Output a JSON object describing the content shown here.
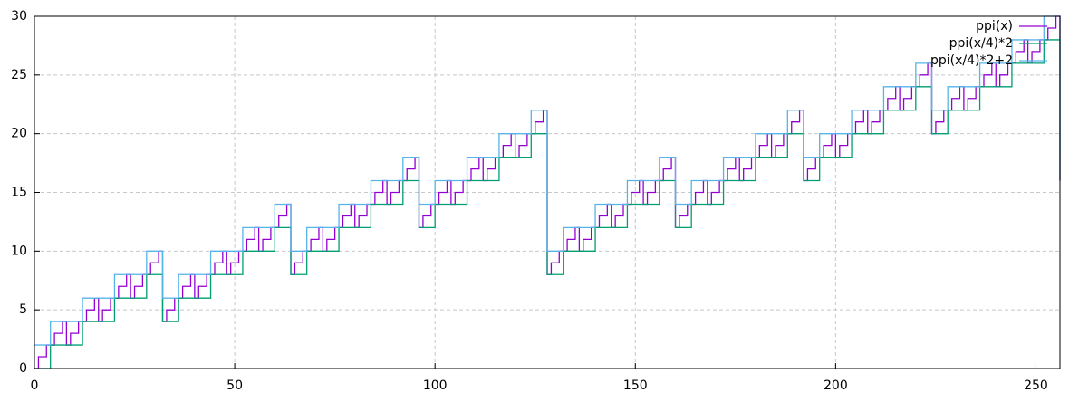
{
  "chart_data": {
    "type": "step",
    "xlim": [
      0,
      256
    ],
    "ylim": [
      0,
      30
    ],
    "xticks": [
      0,
      50,
      100,
      150,
      200,
      250
    ],
    "yticks": [
      0,
      5,
      10,
      15,
      20,
      25,
      30
    ],
    "grid": true,
    "legend": "top-right",
    "series": [
      {
        "name": "ppi(x)",
        "color": "#9400d3",
        "x": [
          0,
          1,
          2,
          3,
          4,
          5,
          6,
          7,
          8,
          9,
          10,
          11,
          12,
          13,
          14,
          15,
          16,
          17,
          18,
          19,
          20,
          21,
          22,
          23,
          24,
          25,
          26,
          27,
          28,
          29,
          30,
          31,
          32,
          33,
          34,
          35,
          36,
          37,
          38,
          39,
          40,
          41,
          42,
          43,
          44,
          45,
          46,
          47,
          48,
          49,
          50,
          51,
          52,
          53,
          54,
          55,
          56,
          57,
          58,
          59,
          60,
          61,
          62,
          63,
          64,
          65,
          66,
          67,
          68,
          69,
          70,
          71,
          72,
          73,
          74,
          75,
          76,
          77,
          78,
          79,
          80,
          81,
          82,
          83,
          84,
          85,
          86,
          87,
          88,
          89,
          90,
          91,
          92,
          93,
          94,
          95,
          96,
          97,
          98,
          99,
          100,
          101,
          102,
          103,
          104,
          105,
          106,
          107,
          108,
          109,
          110,
          111,
          112,
          113,
          114,
          115,
          116,
          117,
          118,
          119,
          120,
          121,
          122,
          123,
          124,
          125,
          126,
          127,
          128,
          129,
          130,
          131,
          132,
          133,
          134,
          135,
          136,
          137,
          138,
          139,
          140,
          141,
          142,
          143,
          144,
          145,
          146,
          147,
          148,
          149,
          150,
          151,
          152,
          153,
          154,
          155,
          156,
          157,
          158,
          159,
          160,
          161,
          162,
          163,
          164,
          165,
          166,
          167,
          168,
          169,
          170,
          171,
          172,
          173,
          174,
          175,
          176,
          177,
          178,
          179,
          180,
          181,
          182,
          183,
          184,
          185,
          186,
          187,
          188,
          189,
          190,
          191,
          192,
          193,
          194,
          195,
          196,
          197,
          198,
          199,
          200,
          201,
          202,
          203,
          204,
          205,
          206,
          207,
          208,
          209,
          210,
          211,
          212,
          213,
          214,
          215,
          216,
          217,
          218,
          219,
          220,
          221,
          222,
          223,
          224,
          225,
          226,
          227,
          228,
          229,
          230,
          231,
          232,
          233,
          234,
          235,
          236,
          237,
          238,
          239,
          240,
          241,
          242,
          243,
          244,
          245,
          246,
          247,
          248,
          249,
          250,
          251,
          252,
          253,
          254,
          255,
          256
        ],
        "values": [
          0,
          1,
          1,
          2,
          2,
          3,
          3,
          4,
          2,
          3,
          3,
          4,
          4,
          5,
          5,
          6,
          4,
          5,
          5,
          6,
          6,
          7,
          7,
          8,
          6,
          7,
          7,
          8,
          8,
          9,
          9,
          10,
          4,
          5,
          5,
          6,
          6,
          7,
          7,
          8,
          6,
          7,
          7,
          8,
          8,
          9,
          9,
          10,
          8,
          9,
          9,
          10,
          10,
          11,
          11,
          12,
          10,
          11,
          11,
          12,
          12,
          13,
          13,
          14,
          8,
          9,
          9,
          10,
          10,
          11,
          11,
          12,
          10,
          11,
          11,
          12,
          12,
          13,
          13,
          14,
          12,
          13,
          13,
          14,
          14,
          15,
          15,
          16,
          14,
          15,
          15,
          16,
          16,
          17,
          17,
          18,
          12,
          13,
          13,
          14,
          14,
          15,
          15,
          16,
          14,
          15,
          15,
          16,
          16,
          17,
          17,
          18,
          16,
          17,
          17,
          18,
          18,
          19,
          19,
          20,
          18,
          19,
          19,
          20,
          20,
          21,
          21,
          22,
          8,
          9,
          9,
          10,
          10,
          11,
          11,
          12,
          10,
          11,
          11,
          12,
          12,
          13,
          13,
          14,
          12,
          13,
          13,
          14,
          14,
          15,
          15,
          16,
          14,
          15,
          15,
          16,
          16,
          17,
          17,
          18,
          12,
          13,
          13,
          14,
          14,
          15,
          15,
          16,
          14,
          15,
          15,
          16,
          16,
          17,
          17,
          18,
          16,
          17,
          17,
          18,
          18,
          19,
          19,
          20,
          18,
          19,
          19,
          20,
          20,
          21,
          21,
          22,
          16,
          17,
          17,
          18,
          18,
          19,
          19,
          20,
          18,
          19,
          19,
          20,
          20,
          21,
          21,
          22,
          20,
          21,
          21,
          22,
          22,
          23,
          23,
          24,
          22,
          23,
          23,
          24,
          24,
          25,
          25,
          26,
          20,
          21,
          21,
          22,
          22,
          23,
          23,
          24,
          22,
          23,
          23,
          24,
          24,
          25,
          25,
          26,
          24,
          25,
          25,
          26,
          26,
          27,
          27,
          28,
          26,
          27,
          27,
          28,
          28,
          29,
          29,
          30,
          16
        ]
      },
      {
        "name": "ppi(x/4)*2",
        "color": "#009e73",
        "x": [
          0,
          4,
          8,
          12,
          16,
          20,
          24,
          28,
          32,
          36,
          40,
          44,
          48,
          52,
          56,
          60,
          64,
          68,
          72,
          76,
          80,
          84,
          88,
          92,
          96,
          100,
          104,
          108,
          112,
          116,
          120,
          124,
          128,
          132,
          136,
          140,
          144,
          148,
          152,
          156,
          160,
          164,
          168,
          172,
          176,
          180,
          184,
          188,
          192,
          196,
          200,
          204,
          208,
          212,
          216,
          220,
          224,
          228,
          232,
          236,
          240,
          244,
          248,
          252,
          256
        ],
        "values": [
          0,
          2,
          2,
          4,
          4,
          6,
          6,
          8,
          4,
          6,
          6,
          8,
          8,
          10,
          10,
          12,
          8,
          10,
          10,
          12,
          12,
          14,
          14,
          16,
          12,
          14,
          14,
          16,
          16,
          18,
          18,
          20,
          8,
          10,
          10,
          12,
          12,
          14,
          14,
          16,
          12,
          14,
          14,
          16,
          16,
          18,
          18,
          20,
          16,
          18,
          18,
          20,
          20,
          22,
          22,
          24,
          20,
          22,
          22,
          24,
          24,
          26,
          26,
          28,
          16
        ]
      },
      {
        "name": "ppi(x/4)*2+2",
        "color": "#56b4e9",
        "x": [
          0,
          4,
          8,
          12,
          16,
          20,
          24,
          28,
          32,
          36,
          40,
          44,
          48,
          52,
          56,
          60,
          64,
          68,
          72,
          76,
          80,
          84,
          88,
          92,
          96,
          100,
          104,
          108,
          112,
          116,
          120,
          124,
          128,
          132,
          136,
          140,
          144,
          148,
          152,
          156,
          160,
          164,
          168,
          172,
          176,
          180,
          184,
          188,
          192,
          196,
          200,
          204,
          208,
          212,
          216,
          220,
          224,
          228,
          232,
          236,
          240,
          244,
          248,
          252,
          256
        ],
        "values": [
          2,
          4,
          4,
          6,
          6,
          8,
          8,
          10,
          6,
          8,
          8,
          10,
          10,
          12,
          12,
          14,
          10,
          12,
          12,
          14,
          14,
          16,
          16,
          18,
          14,
          16,
          16,
          18,
          18,
          20,
          20,
          22,
          10,
          12,
          12,
          14,
          14,
          16,
          16,
          18,
          14,
          16,
          16,
          18,
          18,
          20,
          20,
          22,
          18,
          20,
          20,
          22,
          22,
          24,
          24,
          26,
          22,
          24,
          24,
          26,
          26,
          28,
          28,
          30,
          18
        ]
      }
    ]
  }
}
